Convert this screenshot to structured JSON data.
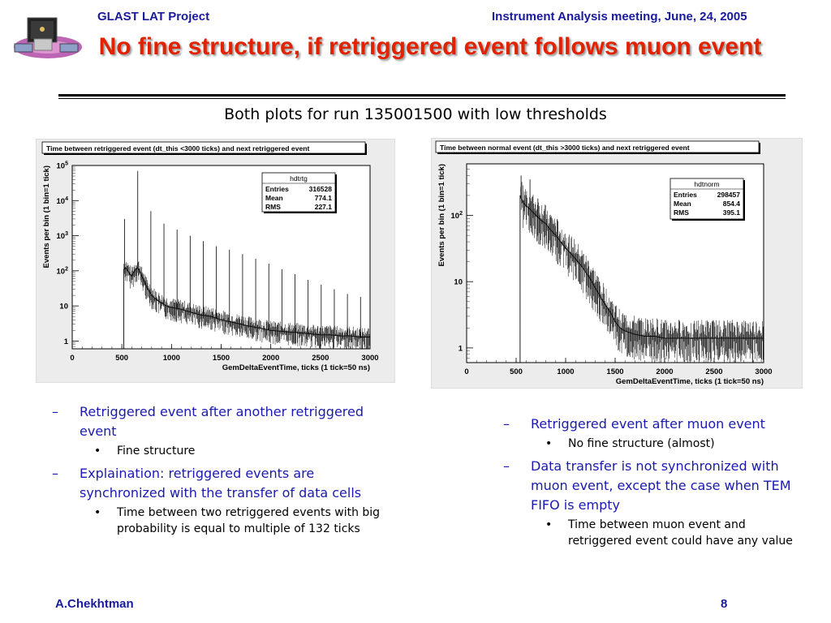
{
  "header": {
    "project": "GLAST LAT Project",
    "meeting": "Instrument Analysis meeting, June, 24, 2005"
  },
  "title": "No fine structure, if retriggered event follows muon event",
  "subtitle": "Both plots for run 135001500 with low thresholds",
  "colors": {
    "header": "#1a1a9c",
    "title": "#e02200",
    "bullet": "#1a1ab0",
    "frame": "#ececec"
  },
  "chart_data": [
    {
      "type": "line",
      "title": "Time between retriggered event (dt_this <3000 ticks)  and next retriggered event",
      "xlabel": "GemDeltaEventTime, ticks (1 tick=50 ns)",
      "ylabel": "Events per bin (1 bin=1 tick)",
      "xlim": [
        0,
        3000
      ],
      "ylim": [
        0.6,
        100000
      ],
      "yscale": "log",
      "x_ticks": [
        "0",
        "500",
        "1000",
        "1500",
        "2000",
        "2500",
        "3000"
      ],
      "y_ticks": [
        {
          "value": 1,
          "base": "1",
          "exp": ""
        },
        {
          "value": 10,
          "base": "10",
          "exp": ""
        },
        {
          "value": 100,
          "base": "10",
          "exp": "2"
        },
        {
          "value": 1000,
          "base": "10",
          "exp": "3"
        },
        {
          "value": 10000,
          "base": "10",
          "exp": "4"
        },
        {
          "value": 100000,
          "base": "10",
          "exp": "5"
        }
      ],
      "stats": {
        "name": "hdtrtg",
        "rows": [
          {
            "label": "Entries",
            "value": "316528"
          },
          {
            "label": "Mean",
            "value": "774.1"
          },
          {
            "label": "RMS",
            "value": "227.1"
          }
        ]
      },
      "series": [
        {
          "x": [
            520,
            540,
            560,
            580,
            600,
            620,
            640,
            660,
            680,
            700,
            720,
            740,
            760,
            780,
            800,
            850,
            900,
            950,
            1000,
            1100,
            1200,
            1300,
            1400,
            1500,
            1600,
            1700,
            1800,
            1900,
            2000,
            2100,
            2200,
            2300,
            2400,
            2500,
            2600,
            2700,
            2800,
            2900,
            3000
          ],
          "values": [
            110,
            120,
            100,
            80,
            70,
            90,
            110,
            120,
            100,
            70,
            55,
            40,
            30,
            25,
            20,
            15,
            12,
            10,
            9,
            8,
            6.5,
            5.5,
            5,
            4,
            3.5,
            3,
            2.6,
            2.3,
            2,
            1.9,
            1.8,
            1.7,
            1.6,
            1.5,
            1.5,
            1.4,
            1.4,
            1.3,
            1.3
          ]
        }
      ],
      "spikes": [
        {
          "x": 528,
          "y": 3000
        },
        {
          "x": 660,
          "y": 70000
        },
        {
          "x": 792,
          "y": 5000
        },
        {
          "x": 924,
          "y": 2200
        },
        {
          "x": 1056,
          "y": 1500
        },
        {
          "x": 1188,
          "y": 1000
        },
        {
          "x": 1320,
          "y": 700
        },
        {
          "x": 1452,
          "y": 500
        },
        {
          "x": 1584,
          "y": 400
        },
        {
          "x": 1716,
          "y": 300
        },
        {
          "x": 1848,
          "y": 220
        },
        {
          "x": 1980,
          "y": 160
        },
        {
          "x": 2112,
          "y": 110
        },
        {
          "x": 2244,
          "y": 80
        },
        {
          "x": 2376,
          "y": 55
        },
        {
          "x": 2508,
          "y": 40
        },
        {
          "x": 2640,
          "y": 30
        },
        {
          "x": 2772,
          "y": 22
        },
        {
          "x": 2904,
          "y": 18
        }
      ]
    },
    {
      "type": "line",
      "title": "Time between normal event (dt_this >3000 ticks)  and next retriggered event",
      "xlabel": "GemDeltaEventTime, ticks (1 tick=50 ns)",
      "ylabel": "Events per bin (1 bin=1 tick)",
      "xlim": [
        0,
        3000
      ],
      "ylim": [
        0.6,
        600
      ],
      "yscale": "log",
      "x_ticks": [
        "0",
        "500",
        "1000",
        "1500",
        "2000",
        "2500",
        "3000"
      ],
      "y_ticks": [
        {
          "value": 1,
          "base": "1",
          "exp": ""
        },
        {
          "value": 10,
          "base": "10",
          "exp": ""
        },
        {
          "value": 100,
          "base": "10",
          "exp": "2"
        }
      ],
      "stats": {
        "name": "hdtnorm",
        "rows": [
          {
            "label": "Entries",
            "value": "298457"
          },
          {
            "label": "Mean",
            "value": "854.4"
          },
          {
            "label": "RMS",
            "value": "395.1"
          }
        ]
      },
      "series": [
        {
          "x": [
            540,
            560,
            580,
            600,
            650,
            700,
            750,
            800,
            850,
            900,
            950,
            1000,
            1050,
            1100,
            1150,
            1200,
            1250,
            1300,
            1350,
            1400,
            1450,
            1500,
            1550,
            1600,
            1700,
            1800,
            1900,
            2000,
            2200,
            2400,
            2600,
            2800,
            3000
          ],
          "values": [
            200,
            170,
            150,
            140,
            120,
            100,
            85,
            75,
            60,
            50,
            40,
            32,
            27,
            22,
            18,
            14,
            11,
            8,
            6,
            4.5,
            3.5,
            2.5,
            2,
            1.8,
            1.6,
            1.5,
            1.5,
            1.4,
            1.4,
            1.4,
            1.4,
            1.4,
            1.4
          ]
        }
      ],
      "spikes": [
        {
          "x": 550,
          "y": 400
        },
        {
          "x": 640,
          "y": 350
        },
        {
          "x": 720,
          "y": 180
        }
      ]
    }
  ],
  "bullets_left": [
    {
      "text": "Retriggered event after another retriggered event",
      "sub": [
        "Fine structure"
      ]
    },
    {
      "text": "Explaination: retriggered events are synchronized with the transfer of data cells",
      "sub": [
        "Time between two retriggered events with big probability is equal to multiple of 132 ticks"
      ]
    }
  ],
  "bullets_right": [
    {
      "text": "Retriggered event after muon event",
      "sub": [
        "No fine structure (almost)"
      ]
    },
    {
      "text": "Data transfer is not synchronized with muon event, except the case when TEM FIFO is empty",
      "sub": [
        "Time between muon event and retriggered event could have any value"
      ]
    }
  ],
  "footer": {
    "author": "A.Chekhtman",
    "page": "8"
  }
}
